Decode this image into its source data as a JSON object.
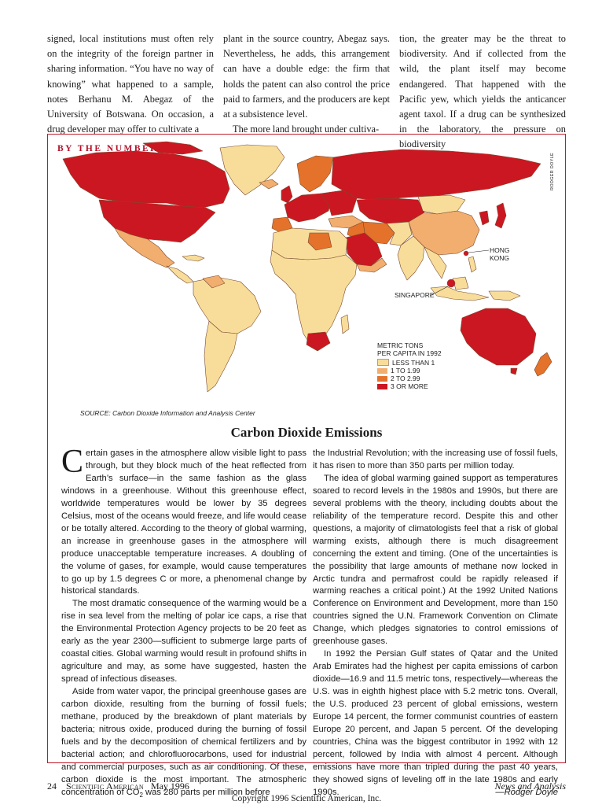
{
  "top_columns": [
    [
      "signed, local institutions must often rely on the integrity of the foreign partner in sharing information. “You have no way of knowing” what happened to a sample, notes Berhanu M. Abegaz of the University of Botswana. On occasion, a drug developer may offer to cultivate a"
    ],
    [
      "plant in the source country, Abegaz says. Nevertheless, he adds, this arrangement can have a double edge: the firm that holds the patent can also control the price paid to farmers, and the producers are kept at a subsistence level.",
      "The more land brought under cultiva-"
    ],
    [
      "tion, the greater may be the threat to biodiversity. And if collected from the wild, the plant itself may become endangered. That happened with the Pacific yew, which yields the anticancer agent taxol. If a drug can be synthesized in the laboratory, the pressure on biodiversity"
    ]
  ],
  "sidebar": {
    "kicker": "BY THE NUMBERS",
    "credit": "RODGER DOYLE",
    "map_labels": {
      "hong_kong": "HONG\nKONG",
      "singapore": "SINGAPORE"
    },
    "legend": {
      "title": "METRIC TONS\nPER CAPITA IN 1992",
      "items": [
        {
          "label": "LESS THAN 1",
          "color": "#f8dd9a"
        },
        {
          "label": "1 TO 1.99",
          "color": "#f2ae6e"
        },
        {
          "label": "2 TO 2.99",
          "color": "#e4722a"
        },
        {
          "label": "3 OR MORE",
          "color": "#cb1721"
        }
      ]
    },
    "source": "SOURCE: Carbon Dioxide Information and Analysis Center",
    "title": "Carbon Dioxide Emissions",
    "drop_cap": "C",
    "col1": [
      "ertain gases in the atmosphere allow visible light to pass through, but they block much of the heat reflected from Earth’s surface—in the same fashion as the glass windows in a greenhouse. Without this greenhouse effect, worldwide temperatures would be lower by 35 degrees Celsius, most of the oceans would freeze, and life would cease or be totally altered. According to the theory of global warming, an increase in greenhouse gases in the atmosphere will produce unacceptable temperature increases. A doubling of the volume of gases, for example, would cause temperatures to go up by 1.5 degrees C or more, a phenomenal change by historical standards.",
      "The most dramatic consequence of the warming would be a rise in sea level from the melting of polar ice caps, a rise that the Environmental Protection Agency projects to be 20 feet as early as the year 2300—sufficient to submerge large parts of coastal cities. Global warming would result in profound shifts in agriculture and may, as some have suggested, hasten the spread of infectious diseases.",
      "Aside from water vapor, the principal greenhouse gases are carbon dioxide, resulting from the burning of fossil fuels; methane, produced by the breakdown of plant materials by bacteria; nitrous oxide, produced during the burning of fossil fuels and by the decomposition of chemical fertilizers and by bacterial action; and chlorofluorocarbons, used for industrial and commercial purposes, such as air conditioning. Of these, carbon dioxide is the most important. The atmospheric concentration of CO",
      "2",
      " was 280 parts per million before"
    ],
    "col2": [
      "the Industrial Revolution; with the increasing use of fossil fuels, it has risen to more than 350 parts per million today.",
      "The idea of global warming gained support as temperatures soared to record levels in the 1980s and 1990s, but there are several problems with the theory, including doubts about the reliability of the temperature record. Despite this and other questions, a majority of climatologists feel that a risk of global warming exists, although there is much disagreement concerning the extent and timing. (One of the uncertainties is the possibility that large amounts of methane now locked in Arctic tundra and permafrost could be rapidly released if warming reaches a critical point.) At the 1992 United Nations Conference on Environment and Development, more than 150 countries signed the U.N. Framework Convention on Climate Change, which pledges signatories to control emissions of greenhouse gases.",
      "In 1992 the Persian Gulf states of Qatar and the United Arab Emirates had the highest per capita emissions of carbon dioxide—16.9 and 11.5 metric tons, respectively—whereas the U.S. was in eighth highest place with 5.2 metric tons. Overall, the U.S. produced 23 percent of global emissions, western Europe 14 percent, the former communist countries of eastern Europe 20 percent, and Japan 5 percent. Of the developing countries, China was the biggest contributor in 1992 with 12 percent, followed by India with almost 4 percent. Although emissions have more than tripled during the past 40 years, they showed signs of leveling off in the late 1980s and early 1990s."
    ],
    "signature": "—Rodger Doyle"
  },
  "footer": {
    "page": "24",
    "magazine": "Scientific American",
    "date": "May 1996",
    "section": "News and Analysis",
    "copyright": "Copyright 1996 Scientific American, Inc."
  }
}
